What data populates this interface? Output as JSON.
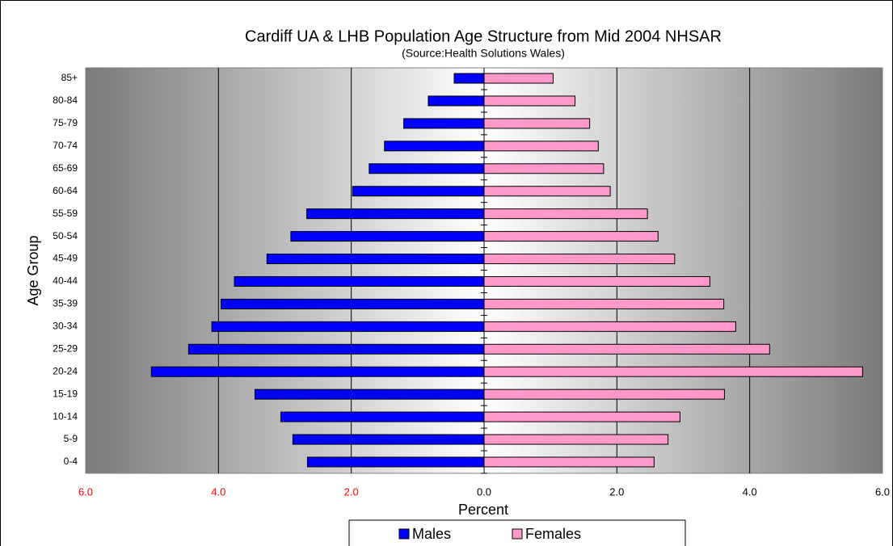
{
  "chart_data": {
    "type": "pyramid",
    "title": "Cardiff UA & LHB Population Age Structure from Mid 2004 NHSAR",
    "subtitle": "(Source:Health Solutions Wales)",
    "x_label": "Percent",
    "y_label": "Age Group",
    "categories": [
      "0-4",
      "5-9",
      "10-14",
      "15-19",
      "20-24",
      "25-29",
      "30-34",
      "35-39",
      "40-44",
      "45-49",
      "50-54",
      "55-59",
      "60-64",
      "65-69",
      "70-74",
      "75-79",
      "80-84",
      "85+"
    ],
    "series": [
      {
        "name": "Males",
        "color": "#0000ff",
        "values": [
          -2.66,
          -2.88,
          -3.06,
          -3.45,
          -5.01,
          -4.45,
          -4.1,
          -3.96,
          -3.76,
          -3.27,
          -2.91,
          -2.67,
          -1.98,
          -1.73,
          -1.5,
          -1.21,
          -0.84,
          -0.45
        ]
      },
      {
        "name": "Females",
        "color": "#ff99cc",
        "values": [
          2.56,
          2.77,
          2.95,
          3.62,
          5.7,
          4.3,
          3.79,
          3.61,
          3.4,
          2.87,
          2.62,
          2.46,
          1.9,
          1.8,
          1.72,
          1.59,
          1.37,
          1.04
        ]
      }
    ],
    "xlim": [
      -6,
      6
    ],
    "xticks": [
      {
        "value": -6,
        "label": "6.0"
      },
      {
        "value": -4,
        "label": "4.0"
      },
      {
        "value": -2,
        "label": "2.0"
      },
      {
        "value": 0,
        "label": "0.0"
      },
      {
        "value": 2,
        "label": "2.0"
      },
      {
        "value": 4,
        "label": "4.0"
      },
      {
        "value": 6,
        "label": "6.0"
      }
    ],
    "grid": true,
    "legend": "bottom"
  }
}
